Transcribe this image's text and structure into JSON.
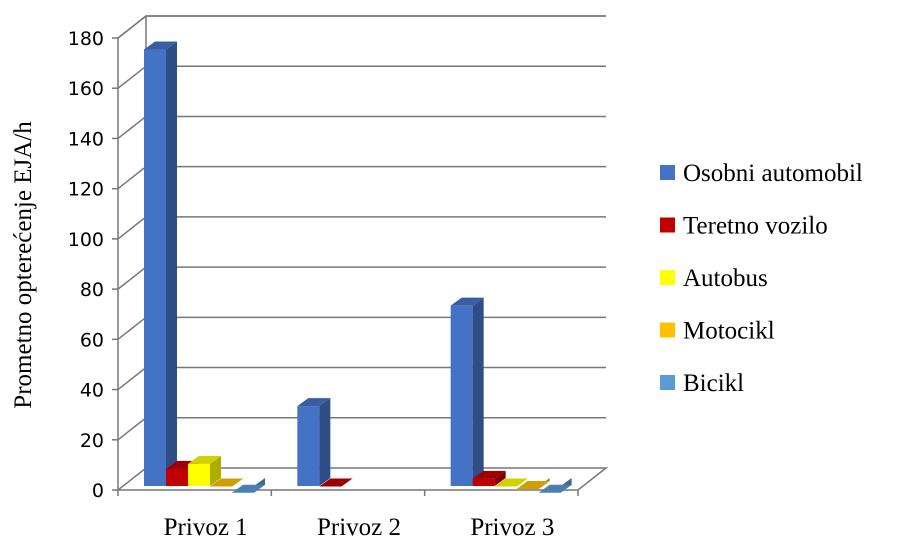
{
  "chart_data": {
    "type": "bar",
    "title": "",
    "xlabel": "",
    "ylabel": "Prometno opterećenje EJA/h",
    "ylim": [
      0,
      180
    ],
    "ytick_step": 20,
    "categories": [
      "Privoz 1",
      "Privoz 2",
      "Privoz 3"
    ],
    "series": [
      {
        "name": "Osobni automobil",
        "color": "#4472C4",
        "values": [
          177,
          35,
          75
        ]
      },
      {
        "name": "Teretno vozilo",
        "color": "#C00000",
        "values": [
          10,
          3,
          6
        ]
      },
      {
        "name": "Autobus",
        "color": "#FFFF00",
        "values": [
          12,
          0,
          3
        ]
      },
      {
        "name": "Motocikl",
        "color": "#FFC000",
        "values": [
          3,
          0,
          2
        ]
      },
      {
        "name": "Bicikl",
        "color": "#5B9BD5",
        "values": [
          0.5,
          0,
          0.5
        ]
      }
    ],
    "grid": true,
    "legend": "right",
    "style": "3d-column"
  }
}
